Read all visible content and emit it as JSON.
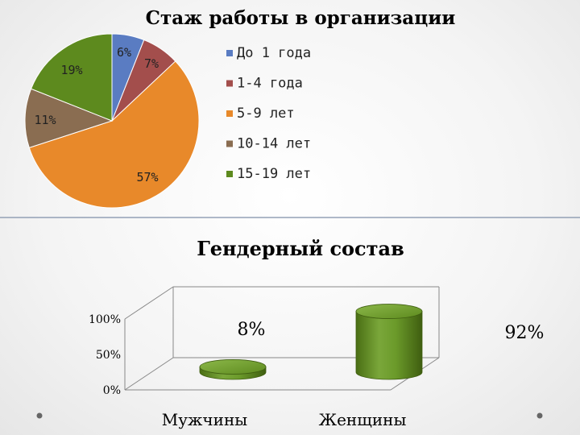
{
  "chart_data": [
    {
      "type": "pie",
      "title": "Стаж работы в организации",
      "legend_position": "right",
      "slices": [
        {
          "label": "До 1 года",
          "value": 6,
          "display": "6%",
          "color": "#5a7cc2"
        },
        {
          "label": "1-4 года",
          "value": 7,
          "display": "7%",
          "color": "#a34e4c"
        },
        {
          "label": "5-9 лет",
          "value": 57,
          "display": "57%",
          "color": "#e8892a"
        },
        {
          "label": "10-14 лет",
          "value": 11,
          "display": "11%",
          "color": "#8a6d51"
        },
        {
          "label": "15-19 лет",
          "value": 19,
          "display": "19%",
          "color": "#5d8a1e"
        }
      ]
    },
    {
      "type": "bar",
      "style": "3d-cylinder",
      "title": "Гендерный состав",
      "categories": [
        "Мужчины",
        "Женщины"
      ],
      "values": [
        8,
        92
      ],
      "value_labels": [
        "8%",
        "92%"
      ],
      "ylim": [
        0,
        100
      ],
      "yticks": [
        "0%",
        "50%",
        "100%"
      ],
      "grid": false,
      "color": "#5d8a1e"
    }
  ]
}
